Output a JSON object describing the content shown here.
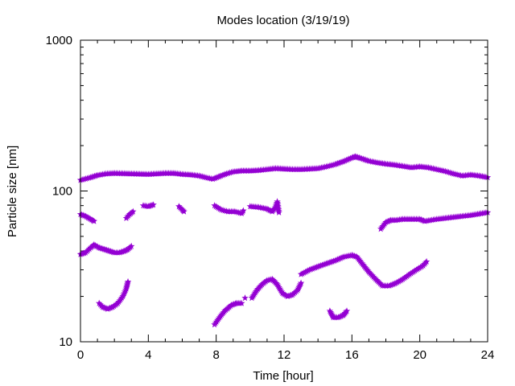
{
  "chart_data": {
    "type": "scatter",
    "title": "Modes location (3/19/19)",
    "xlabel": "Time [hour]",
    "ylabel": "Particle size [nm]",
    "xlim": [
      0,
      24
    ],
    "ylim": [
      10,
      1000
    ],
    "yscale": "log",
    "grid": false,
    "x_ticks": [
      0,
      4,
      8,
      12,
      16,
      20,
      24
    ],
    "x_tick_labels": [
      "0",
      "4",
      "8",
      "12",
      "16",
      "20",
      "24"
    ],
    "y_ticks": [
      10,
      100,
      1000
    ],
    "y_tick_labels": [
      "10",
      "100",
      "1000"
    ],
    "marker_color": "#9400d3",
    "marker": "star",
    "segments": [
      {
        "points": [
          [
            0,
            118
          ],
          [
            0.5,
            122
          ],
          [
            1,
            127
          ],
          [
            1.5,
            130
          ],
          [
            2,
            131
          ],
          [
            3,
            130
          ],
          [
            4,
            129
          ],
          [
            5,
            131
          ],
          [
            5.5,
            131
          ],
          [
            6,
            129
          ],
          [
            6.5,
            128
          ],
          [
            7,
            126
          ],
          [
            7.5,
            122
          ],
          [
            7.8,
            120
          ],
          [
            8.2,
            125
          ],
          [
            8.6,
            130
          ],
          [
            9,
            134
          ],
          [
            9.5,
            136
          ],
          [
            10,
            136
          ],
          [
            10.5,
            137
          ],
          [
            11,
            139
          ],
          [
            11.5,
            141
          ],
          [
            12,
            140
          ],
          [
            12.5,
            139
          ],
          [
            13,
            139
          ],
          [
            13.5,
            140
          ],
          [
            14,
            141
          ],
          [
            14.5,
            145
          ],
          [
            15,
            150
          ],
          [
            15.5,
            157
          ],
          [
            16,
            166
          ],
          [
            16.2,
            169
          ],
          [
            16.5,
            165
          ],
          [
            17,
            158
          ],
          [
            17.5,
            154
          ],
          [
            18,
            151
          ],
          [
            18.5,
            149
          ],
          [
            19,
            146
          ],
          [
            19.5,
            143
          ],
          [
            20,
            145
          ],
          [
            20.5,
            143
          ],
          [
            21,
            139
          ],
          [
            21.5,
            135
          ],
          [
            22,
            130
          ],
          [
            22.5,
            126
          ],
          [
            23,
            128
          ],
          [
            23.5,
            126
          ],
          [
            24,
            123
          ]
        ]
      },
      {
        "points": [
          [
            0,
            70
          ],
          [
            0.3,
            68
          ],
          [
            0.6,
            65
          ],
          [
            0.8,
            63
          ]
        ]
      },
      {
        "points": [
          [
            0,
            38
          ],
          [
            0.3,
            39
          ],
          [
            0.6,
            42
          ],
          [
            0.8,
            44
          ],
          [
            1.1,
            42
          ],
          [
            1.4,
            41
          ],
          [
            1.7,
            40
          ],
          [
            2,
            39
          ],
          [
            2.3,
            39
          ],
          [
            2.6,
            40
          ],
          [
            2.8,
            41
          ],
          [
            3,
            43
          ]
        ]
      },
      {
        "points": [
          [
            1.1,
            18
          ],
          [
            1.3,
            17
          ],
          [
            1.6,
            16.5
          ],
          [
            1.9,
            17
          ],
          [
            2.2,
            18
          ],
          [
            2.5,
            20
          ],
          [
            2.7,
            22.5
          ],
          [
            2.8,
            25
          ]
        ]
      },
      {
        "points": [
          [
            2.7,
            66
          ],
          [
            2.9,
            70
          ],
          [
            3.1,
            73
          ]
        ]
      },
      {
        "points": [
          [
            3.7,
            80
          ],
          [
            4,
            79
          ],
          [
            4.3,
            81
          ]
        ]
      },
      {
        "points": [
          [
            5.8,
            79
          ],
          [
            6,
            75
          ],
          [
            6.1,
            73
          ]
        ]
      },
      {
        "points": [
          [
            7.9,
            80
          ],
          [
            8.3,
            75
          ],
          [
            8.7,
            73
          ],
          [
            9.1,
            73
          ],
          [
            9.5,
            71
          ],
          [
            9.6,
            74
          ]
        ]
      },
      {
        "points": [
          [
            10,
            79
          ],
          [
            10.5,
            78
          ],
          [
            11,
            76
          ],
          [
            11.3,
            73
          ],
          [
            11.5,
            78
          ],
          [
            11.6,
            85
          ],
          [
            11.7,
            72
          ]
        ]
      },
      {
        "points": [
          [
            7.9,
            13
          ],
          [
            8.2,
            14.5
          ],
          [
            8.5,
            16
          ],
          [
            8.9,
            17.5
          ],
          [
            9.2,
            18
          ],
          [
            9.5,
            18
          ]
        ]
      },
      {
        "points": [
          [
            9.7,
            19.5
          ]
        ]
      },
      {
        "points": [
          [
            10.1,
            19.5
          ],
          [
            10.4,
            22
          ],
          [
            10.7,
            24
          ],
          [
            11,
            25.5
          ],
          [
            11.3,
            26
          ],
          [
            11.6,
            24
          ],
          [
            11.9,
            21
          ],
          [
            12.2,
            20
          ],
          [
            12.5,
            20.5
          ],
          [
            12.8,
            22
          ],
          [
            13,
            24.5
          ]
        ]
      },
      {
        "points": [
          [
            13,
            28
          ],
          [
            13.5,
            30
          ],
          [
            14,
            31.5
          ],
          [
            14.5,
            33
          ],
          [
            15,
            34.5
          ],
          [
            15.5,
            36.5
          ],
          [
            16,
            37.5
          ],
          [
            16.3,
            36.5
          ],
          [
            16.6,
            33
          ],
          [
            17,
            29
          ],
          [
            17.4,
            26
          ],
          [
            17.8,
            23.5
          ],
          [
            18.2,
            23.5
          ],
          [
            18.6,
            24.5
          ],
          [
            19,
            26
          ],
          [
            19.4,
            28
          ],
          [
            19.8,
            30
          ],
          [
            20.2,
            32
          ],
          [
            20.4,
            34
          ]
        ]
      },
      {
        "points": [
          [
            14.7,
            16
          ],
          [
            14.9,
            14.5
          ],
          [
            15.2,
            14.5
          ],
          [
            15.5,
            15
          ],
          [
            15.7,
            16
          ]
        ]
      },
      {
        "points": [
          [
            17.7,
            56
          ],
          [
            18,
            62
          ],
          [
            18.3,
            64
          ],
          [
            18.6,
            64
          ],
          [
            19,
            65
          ],
          [
            19.5,
            65
          ],
          [
            20,
            65
          ],
          [
            20.3,
            63
          ],
          [
            21,
            65
          ],
          [
            22,
            67
          ],
          [
            23,
            69
          ],
          [
            24,
            72
          ]
        ]
      }
    ]
  }
}
